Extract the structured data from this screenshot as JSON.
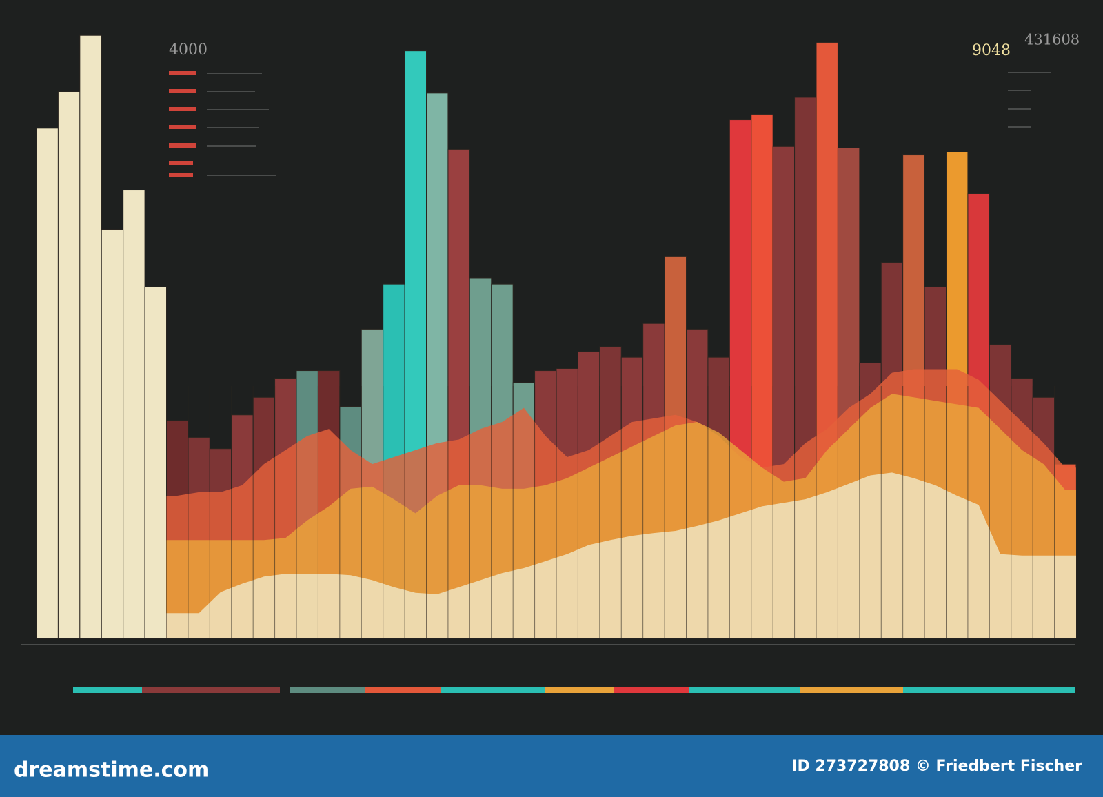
{
  "chart_data": {
    "type": "bar",
    "annotations": [
      "4000",
      "9048",
      "431608"
    ],
    "categories": [
      null,
      null,
      null,
      null,
      null,
      null,
      null,
      null,
      null,
      null,
      null,
      null,
      null,
      null,
      null,
      null,
      null,
      null,
      null,
      null,
      null,
      null,
      null,
      null,
      null,
      null,
      null,
      null,
      null,
      null,
      null,
      null,
      null,
      null,
      null,
      null,
      null,
      null,
      null,
      null,
      null,
      null,
      null,
      null,
      null,
      null,
      null,
      null
    ],
    "values": [
      726,
      778,
      858,
      582,
      638,
      500,
      310,
      286,
      270,
      318,
      343,
      370,
      381,
      381,
      330,
      440,
      504,
      836,
      776,
      696,
      513,
      504,
      364,
      381,
      384,
      408,
      415,
      400,
      448,
      543,
      440,
      400,
      738,
      745,
      700,
      770,
      848,
      698,
      392,
      535,
      688,
      500,
      692,
      633,
      418,
      370,
      343,
      248
    ],
    "colors": [
      "#efe6c4",
      "#efe6c4",
      "#efe6c4",
      "#efe6c4",
      "#efe6c4",
      "#efe6c4",
      "#6e2c2c",
      "#7d3535",
      "#7d3535",
      "#8a3a3a",
      "#7a3232",
      "#8a3a3a",
      "#5e8c80",
      "#6e2c2c",
      "#5e8c80",
      "#7fa595",
      "#2bbfb3",
      "#33c9bb",
      "#7fb5a5",
      "#9a4040",
      "#6f9e8e",
      "#6f9e8e",
      "#6f9e8e",
      "#8a3a3a",
      "#8a3a3a",
      "#8a3a3a",
      "#7d3535",
      "#8a3a3a",
      "#8a3a3a",
      "#c8613c",
      "#8a3a3a",
      "#7d3535",
      "#e0383c",
      "#ec5038",
      "#8a3a3a",
      "#7d3535",
      "#e4583a",
      "#a04a40",
      "#7d3535",
      "#7d3535",
      "#c8613c",
      "#7d3535",
      "#eb9a2e",
      "#d8383a",
      "#7d3535",
      "#7d3535",
      "#7d3535",
      "#e85a3a"
    ],
    "areas": [
      {
        "color": "#e4603a",
        "values": [
          null,
          null,
          null,
          null,
          null,
          null,
          203,
          208,
          208,
          218,
          248,
          268,
          288,
          298,
          268,
          248,
          258,
          268,
          278,
          283,
          298,
          308,
          328,
          288,
          258,
          268,
          288,
          308,
          313,
          318,
          308,
          288,
          258,
          243,
          248,
          278,
          298,
          328,
          348,
          378,
          383,
          383,
          383,
          368,
          338,
          308,
          278,
          243
        ]
      },
      {
        "color": "#e9a33a",
        "values": [
          null,
          null,
          null,
          null,
          null,
          null,
          140,
          140,
          140,
          140,
          140,
          143,
          168,
          188,
          213,
          216,
          198,
          178,
          203,
          218,
          218,
          213,
          213,
          218,
          228,
          243,
          258,
          273,
          288,
          303,
          308,
          293,
          268,
          243,
          223,
          228,
          268,
          298,
          328,
          348,
          343,
          338,
          333,
          328,
          298,
          268,
          248,
          211
        ]
      },
      {
        "color": "#efe6c4",
        "values": [
          null,
          null,
          null,
          null,
          null,
          null,
          36,
          36,
          66,
          78,
          88,
          92,
          92,
          92,
          90,
          83,
          73,
          65,
          63,
          73,
          83,
          93,
          100,
          110,
          120,
          133,
          140,
          146,
          150,
          153,
          160,
          168,
          178,
          188,
          193,
          198,
          208,
          220,
          232,
          236,
          228,
          218,
          203,
          190,
          120,
          118,
          118,
          118
        ]
      }
    ],
    "ylim": [
      0,
      870
    ]
  },
  "footer": {
    "logo": "dreamstime.com",
    "credit": "ID 273727808 © Friedbert Fischer"
  }
}
